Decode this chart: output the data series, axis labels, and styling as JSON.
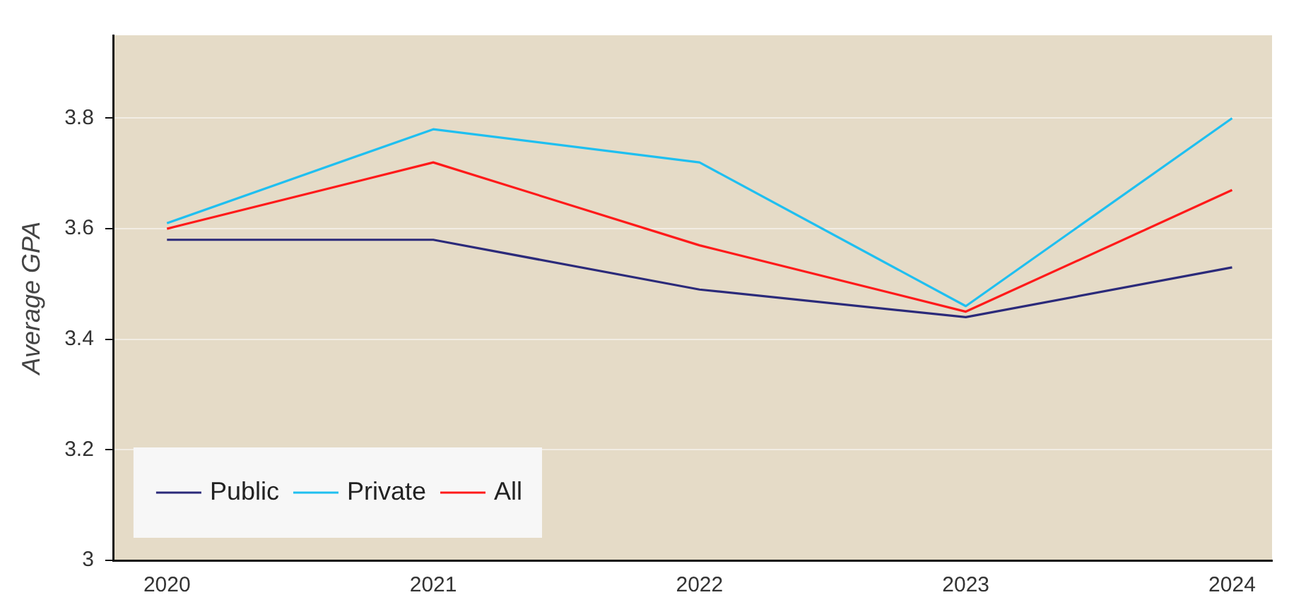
{
  "chart_data": {
    "type": "line",
    "ylabel": "Average GPA",
    "x": [
      2020,
      2021,
      2022,
      2023,
      2024
    ],
    "xlim": [
      2019.8,
      2024.15
    ],
    "xticks": [
      2020,
      2021,
      2022,
      2023,
      2024
    ],
    "ylim": [
      3,
      3.95
    ],
    "yticks": [
      3,
      3.2,
      3.4,
      3.6,
      3.8
    ],
    "grid": "y",
    "legend": "bottom left",
    "marker": "none",
    "line_style": "solid",
    "series": [
      {
        "name": "Public",
        "color": "#2b2a7a",
        "values": [
          3.58,
          3.58,
          3.49,
          3.44,
          3.53
        ]
      },
      {
        "name": "Private",
        "color": "#1fbff0",
        "values": [
          3.61,
          3.78,
          3.72,
          3.46,
          3.8
        ]
      },
      {
        "name": "All",
        "color": "#ff1a1a",
        "values": [
          3.6,
          3.72,
          3.57,
          3.45,
          3.67
        ]
      }
    ]
  }
}
